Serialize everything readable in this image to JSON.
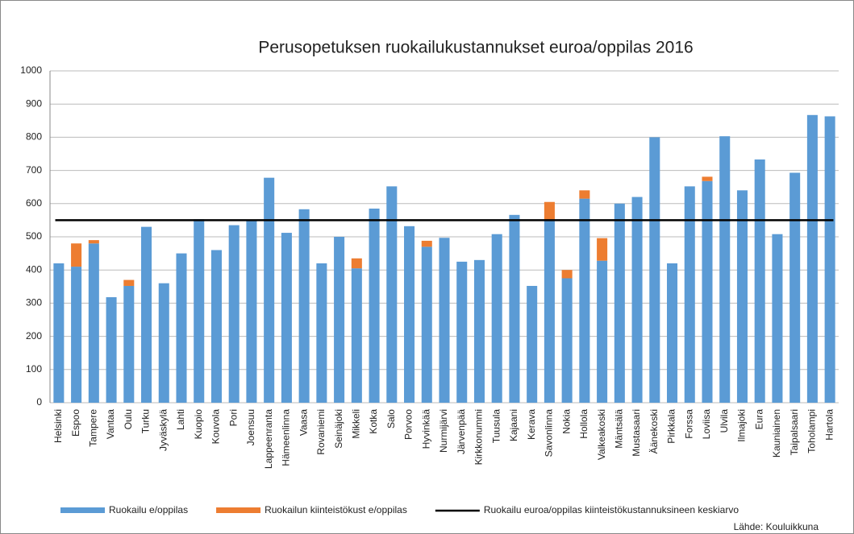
{
  "chart_data": {
    "type": "stacked_bar",
    "title": "Perusopetuksen ruokailukustannukset euroa/oppilas 2016",
    "categories": [
      "Helsinki",
      "Espoo",
      "Tampere",
      "Vantaa",
      "Oulu",
      "Turku",
      "Jyväskylä",
      "Lahti",
      "Kuopio",
      "Kouvola",
      "Pori",
      "Joensuu",
      "Lappeenranta",
      "Hämeenlinna",
      "Vaasa",
      "Rovaniemi",
      "Seinäjoki",
      "Mikkeli",
      "Kotka",
      "Salo",
      "Porvoo",
      "Hyvinkää",
      "Nurmijärvi",
      "Järvenpää",
      "Kirkkonummi",
      "Tuusula",
      "Kajaani",
      "Kerava",
      "Savonlinna",
      "Nokia",
      "Hollola",
      "Valkeakoski",
      "Mäntsälä",
      "Mustasaari",
      "Äänekoski",
      "Pirkkala",
      "Forssa",
      "Loviisa",
      "Ulvila",
      "Ilmajoki",
      "Eura",
      "Kauniainen",
      "Taipalsaari",
      "Toholampi",
      "Hartola"
    ],
    "series": [
      {
        "name": "Ruokailu e/oppilas",
        "color": "#5b9bd5",
        "values": [
          420,
          410,
          480,
          318,
          352,
          530,
          360,
          450,
          553,
          460,
          535,
          548,
          678,
          512,
          583,
          420,
          500,
          405,
          585,
          652,
          532,
          470,
          497,
          425,
          430,
          508,
          566,
          352,
          550,
          375,
          615,
          428,
          600,
          620,
          800,
          420,
          652,
          668,
          803,
          640,
          733,
          508,
          693,
          867,
          863
        ]
      },
      {
        "name": "Ruokailun kiinteistökust e/oppilas",
        "color": "#ed7d31",
        "values": [
          0,
          70,
          10,
          0,
          18,
          0,
          0,
          0,
          0,
          0,
          0,
          0,
          0,
          0,
          0,
          0,
          0,
          30,
          0,
          0,
          0,
          18,
          0,
          0,
          0,
          0,
          0,
          0,
          55,
          25,
          25,
          68,
          0,
          0,
          0,
          0,
          0,
          13,
          0,
          0,
          0,
          0,
          0,
          0,
          0
        ]
      }
    ],
    "average": {
      "name": "Ruokailu euroa/oppilas kiinteistökustannuksineen keskiarvo",
      "value": 550,
      "color": "#000000"
    },
    "ylim": [
      0,
      1000
    ],
    "yticks": [
      0,
      100,
      200,
      300,
      400,
      500,
      600,
      700,
      800,
      900,
      1000
    ],
    "grid": true,
    "source": "Lähde: Kouluikkuna"
  }
}
